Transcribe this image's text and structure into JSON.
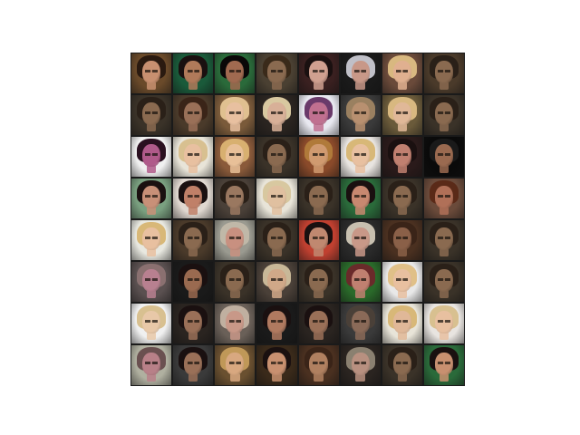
{
  "grid": {
    "rows": 8,
    "columns": 8,
    "tiles": [
      {
        "bg": "#6a4a2a",
        "hair": "#2a1a10",
        "face": "#c89070"
      },
      {
        "bg": "#1a5a3a",
        "hair": "#1a1010",
        "face": "#b07a5a"
      },
      {
        "bg": "#2a6a3a",
        "hair": "#0a0808",
        "face": "#a06a50"
      },
      {
        "bg": "#4a4032",
        "hair": "#3a2a1a",
        "face": "#8a6a50"
      },
      {
        "bg": "#3a2020",
        "hair": "#1a1010",
        "face": "#d0a090"
      },
      {
        "bg": "#1a1a1a",
        "hair": "#c0c0c8",
        "face": "#c89888"
      },
      {
        "bg": "#6a4a3a",
        "hair": "#d8b880",
        "face": "#e0b090"
      },
      {
        "bg": "#4a3a2a",
        "hair": "#2a2018",
        "face": "#8a6a50"
      },
      {
        "bg": "#3a3228",
        "hair": "#2a2018",
        "face": "#8a6a50"
      },
      {
        "bg": "#4a3a2a",
        "hair": "#3a2418",
        "face": "#9a7058"
      },
      {
        "bg": "#7a5a3a",
        "hair": "#e0c090",
        "face": "#e8c0a0"
      },
      {
        "bg": "#2a2420",
        "hair": "#d8c8a0",
        "face": "#d8b098"
      },
      {
        "bg": "#e8e8f0",
        "hair": "#6a3a6a",
        "face": "#c07090"
      },
      {
        "bg": "#3a3a3a",
        "hair": "#9a8060",
        "face": "#b89070"
      },
      {
        "bg": "#6a5a3a",
        "hair": "#d8b880",
        "face": "#e0b898"
      },
      {
        "bg": "#3a3228",
        "hair": "#2a2018",
        "face": "#8a6a50"
      },
      {
        "bg": "#f0f0f0",
        "hair": "#2a1020",
        "face": "#b05a8a"
      },
      {
        "bg": "#e8e4d8",
        "hair": "#d8c090",
        "face": "#e8c0a0"
      },
      {
        "bg": "#8a5a3a",
        "hair": "#d8b070",
        "face": "#e8c098"
      },
      {
        "bg": "#3a3228",
        "hair": "#2a2018",
        "face": "#8a6a50"
      },
      {
        "bg": "#8a4a2a",
        "hair": "#b07a3a",
        "face": "#d09a70"
      },
      {
        "bg": "#e8e4e0",
        "hair": "#d8b878",
        "face": "#e8c0a0"
      },
      {
        "bg": "#2a1a1a",
        "hair": "#1a1010",
        "face": "#c08070"
      },
      {
        "bg": "#0a0a0a",
        "hair": "#1a1a1a",
        "face": "#9a6a50"
      },
      {
        "bg": "#7aa080",
        "hair": "#1a1010",
        "face": "#c89078"
      },
      {
        "bg": "#e0d8d0",
        "hair": "#1a1010",
        "face": "#c08068"
      },
      {
        "bg": "#4a4038",
        "hair": "#2a2018",
        "face": "#9a7860"
      },
      {
        "bg": "#e8e4d8",
        "hair": "#d8c8a0",
        "face": "#e0c0a0"
      },
      {
        "bg": "#3a3228",
        "hair": "#2a2018",
        "face": "#8a6a50"
      },
      {
        "bg": "#2a6a3a",
        "hair": "#1a1010",
        "face": "#c88870"
      },
      {
        "bg": "#3a3228",
        "hair": "#2a2018",
        "face": "#8a6a50"
      },
      {
        "bg": "#6a4a3a",
        "hair": "#5a2a18",
        "face": "#b07058"
      },
      {
        "bg": "#e8e8e0",
        "hair": "#d8b878",
        "face": "#e8c0a0"
      },
      {
        "bg": "#4a3a2a",
        "hair": "#2a2018",
        "face": "#8a6a50"
      },
      {
        "bg": "#9a9a90",
        "hair": "#c0b8a8",
        "face": "#c89080"
      },
      {
        "bg": "#3a3228",
        "hair": "#2a2018",
        "face": "#8a6a50"
      },
      {
        "bg": "#c04030",
        "hair": "#1a1010",
        "face": "#c08870"
      },
      {
        "bg": "#2a2a2a",
        "hair": "#c8c0b0",
        "face": "#c89888"
      },
      {
        "bg": "#4a3020",
        "hair": "#3a2418",
        "face": "#8a6048"
      },
      {
        "bg": "#3a3228",
        "hair": "#2a2018",
        "face": "#8a6a50"
      },
      {
        "bg": "#5a5050",
        "hair": "#8a7070",
        "face": "#b88090"
      },
      {
        "bg": "#1a1a1a",
        "hair": "#1a1010",
        "face": "#9a6a50"
      },
      {
        "bg": "#3a3228",
        "hair": "#2a2018",
        "face": "#8a6a50"
      },
      {
        "bg": "#4a4038",
        "hair": "#c8b898",
        "face": "#d0a888"
      },
      {
        "bg": "#3a3228",
        "hair": "#2a2018",
        "face": "#8a6a50"
      },
      {
        "bg": "#2a6a2a",
        "hair": "#6a2a2a",
        "face": "#c08070"
      },
      {
        "bg": "#e8e8e8",
        "hair": "#e0c088",
        "face": "#e8c0a0"
      },
      {
        "bg": "#3a3228",
        "hair": "#2a2018",
        "face": "#8a6a50"
      },
      {
        "bg": "#f0f0f0",
        "hair": "#d8c090",
        "face": "#e8c8a8"
      },
      {
        "bg": "#2a2420",
        "hair": "#1a1010",
        "face": "#9a7058"
      },
      {
        "bg": "#6a6058",
        "hair": "#c0b0a0",
        "face": "#c89888"
      },
      {
        "bg": "#1a1a1a",
        "hair": "#1a1010",
        "face": "#b07a60"
      },
      {
        "bg": "#2a2420",
        "hair": "#1a1010",
        "face": "#9a7058"
      },
      {
        "bg": "#3a3a3a",
        "hair": "#4a4038",
        "face": "#8a6a58"
      },
      {
        "bg": "#e8e4d8",
        "hair": "#d8b878",
        "face": "#e0b898"
      },
      {
        "bg": "#e8e4e0",
        "hair": "#d8c090",
        "face": "#e8c0a0"
      },
      {
        "bg": "#b0b0a0",
        "hair": "#6a5050",
        "face": "#b88088"
      },
      {
        "bg": "#3a3a3a",
        "hair": "#1a1010",
        "face": "#9a7058"
      },
      {
        "bg": "#6a5030",
        "hair": "#c09858",
        "face": "#d8a880"
      },
      {
        "bg": "#3a2a1a",
        "hair": "#1a1010",
        "face": "#c89070"
      },
      {
        "bg": "#4a3020",
        "hair": "#3a2418",
        "face": "#b08060"
      },
      {
        "bg": "#2a2420",
        "hair": "#8a8070",
        "face": "#b89080"
      },
      {
        "bg": "#3a3228",
        "hair": "#2a2018",
        "face": "#8a6a50"
      },
      {
        "bg": "#2a6a3a",
        "hair": "#1a1010",
        "face": "#c89070"
      }
    ]
  }
}
